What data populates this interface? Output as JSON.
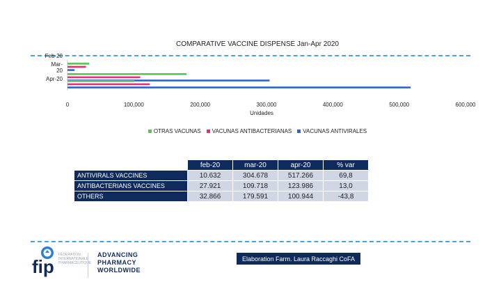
{
  "chart_data": {
    "type": "bar",
    "orientation": "horizontal",
    "title": "COMPARATIVE VACCINE DISPENSE Jan-Apr 2020",
    "xlabel": "Unidades",
    "ylabel": "",
    "categories": [
      "Feb-20",
      "Mar-20",
      "Apr-20"
    ],
    "category_labels": [
      "Feb-20",
      "Mar-\n20",
      "Apr-20"
    ],
    "xlim": [
      0,
      600000
    ],
    "x_ticks": [
      "0",
      "100,000",
      "200,000",
      "300,000",
      "400,000",
      "500,000",
      "600,000"
    ],
    "x_tick_values": [
      0,
      100000,
      200000,
      300000,
      400000,
      500000,
      600000
    ],
    "legend_position": "bottom",
    "grid": false,
    "series": [
      {
        "name": "OTRAS VACUNAS",
        "color": "#5dbf5a",
        "values": [
          32866,
          179591,
          100944
        ]
      },
      {
        "name": "VACUNAS ANTIBACTERIANAS",
        "color": "#e0307a",
        "values": [
          27921,
          109718,
          123986
        ]
      },
      {
        "name": "VACUNAS ANTIVIRALES",
        "color": "#2f62d9",
        "values": [
          10632,
          304678,
          517266
        ]
      }
    ]
  },
  "table": {
    "headers": [
      "feb-20",
      "mar-20",
      "apr-20",
      "% var"
    ],
    "rows": [
      {
        "label": "ANTIVIRALS VACCINES",
        "values": [
          "10.632",
          "304.678",
          "517.266",
          "69,8"
        ]
      },
      {
        "label": "ANTIBACTERIANS VACCINES",
        "values": [
          "27.921",
          "109.718",
          "123.986",
          "13,0"
        ]
      },
      {
        "label": "OTHERS",
        "values": [
          "32.866",
          "179.591",
          "100.944",
          "-43,8"
        ]
      }
    ]
  },
  "footer": {
    "credit": "Elaboration Farm. Laura Raccaghi CoFA",
    "logo_text": "fip",
    "logo_small": "FÉDÉRATION INTERNATIONALE PHARMACEUTIQUE",
    "tagline_1": "ADVANCING",
    "tagline_2": "PHARMACY",
    "tagline_3": "WORLDWIDE"
  }
}
